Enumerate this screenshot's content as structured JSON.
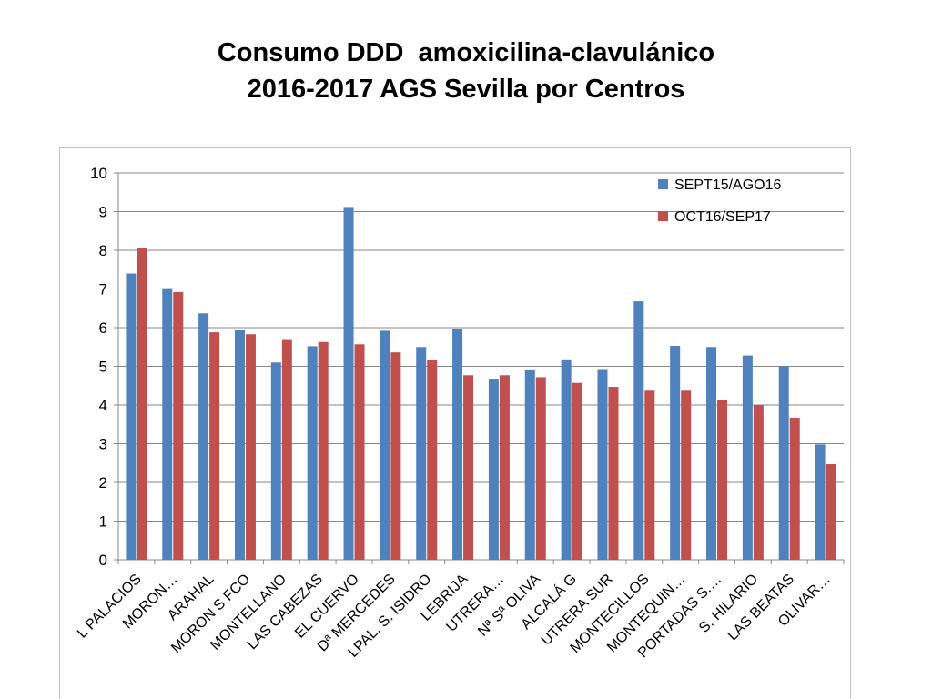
{
  "title": {
    "line1": "Consumo DDD  amoxicilina-clavulánico",
    "line2": "2016-2017 AGS Sevilla por Centros"
  },
  "chart_data": {
    "type": "bar",
    "categories": [
      "L PALACIOS",
      "MORON…",
      "ARAHAL",
      "MORON S FCO",
      "MONTELLANO",
      "LAS CABEZAS",
      "EL CUERVO",
      "Dª MERCEDES",
      "LPAL. S. ISIDRO",
      "LEBRIJA",
      "UTRERA…",
      "Nª Sª OLIVA",
      "ALCALÁ G",
      "UTRERA SUR",
      "MONTECILLOS",
      "MONTEQUIN…",
      "PORTADAS S.…",
      "S. HILARIO",
      "LAS BEATAS",
      "OLIVAR…"
    ],
    "series": [
      {
        "name": "SEPT15/AGO16",
        "color": "#4f81bd",
        "values": [
          7.4,
          7.02,
          6.37,
          5.93,
          5.1,
          5.52,
          9.12,
          5.92,
          5.5,
          5.97,
          4.68,
          4.92,
          5.18,
          4.93,
          6.68,
          5.53,
          5.5,
          5.28,
          5.0,
          2.98
        ]
      },
      {
        "name": "OCT16/SEP17",
        "color": "#c0504d",
        "values": [
          8.07,
          6.92,
          5.88,
          5.83,
          5.68,
          5.63,
          5.57,
          5.36,
          5.17,
          4.77,
          4.77,
          4.72,
          4.57,
          4.47,
          4.37,
          4.37,
          4.12,
          4.0,
          3.67,
          2.47
        ]
      }
    ],
    "yticks": [
      "0",
      "1",
      "2",
      "3",
      "4",
      "5",
      "6",
      "7",
      "8",
      "9",
      "10"
    ],
    "ylim": [
      0,
      10
    ],
    "grid": true,
    "legend_position": "top-right"
  }
}
